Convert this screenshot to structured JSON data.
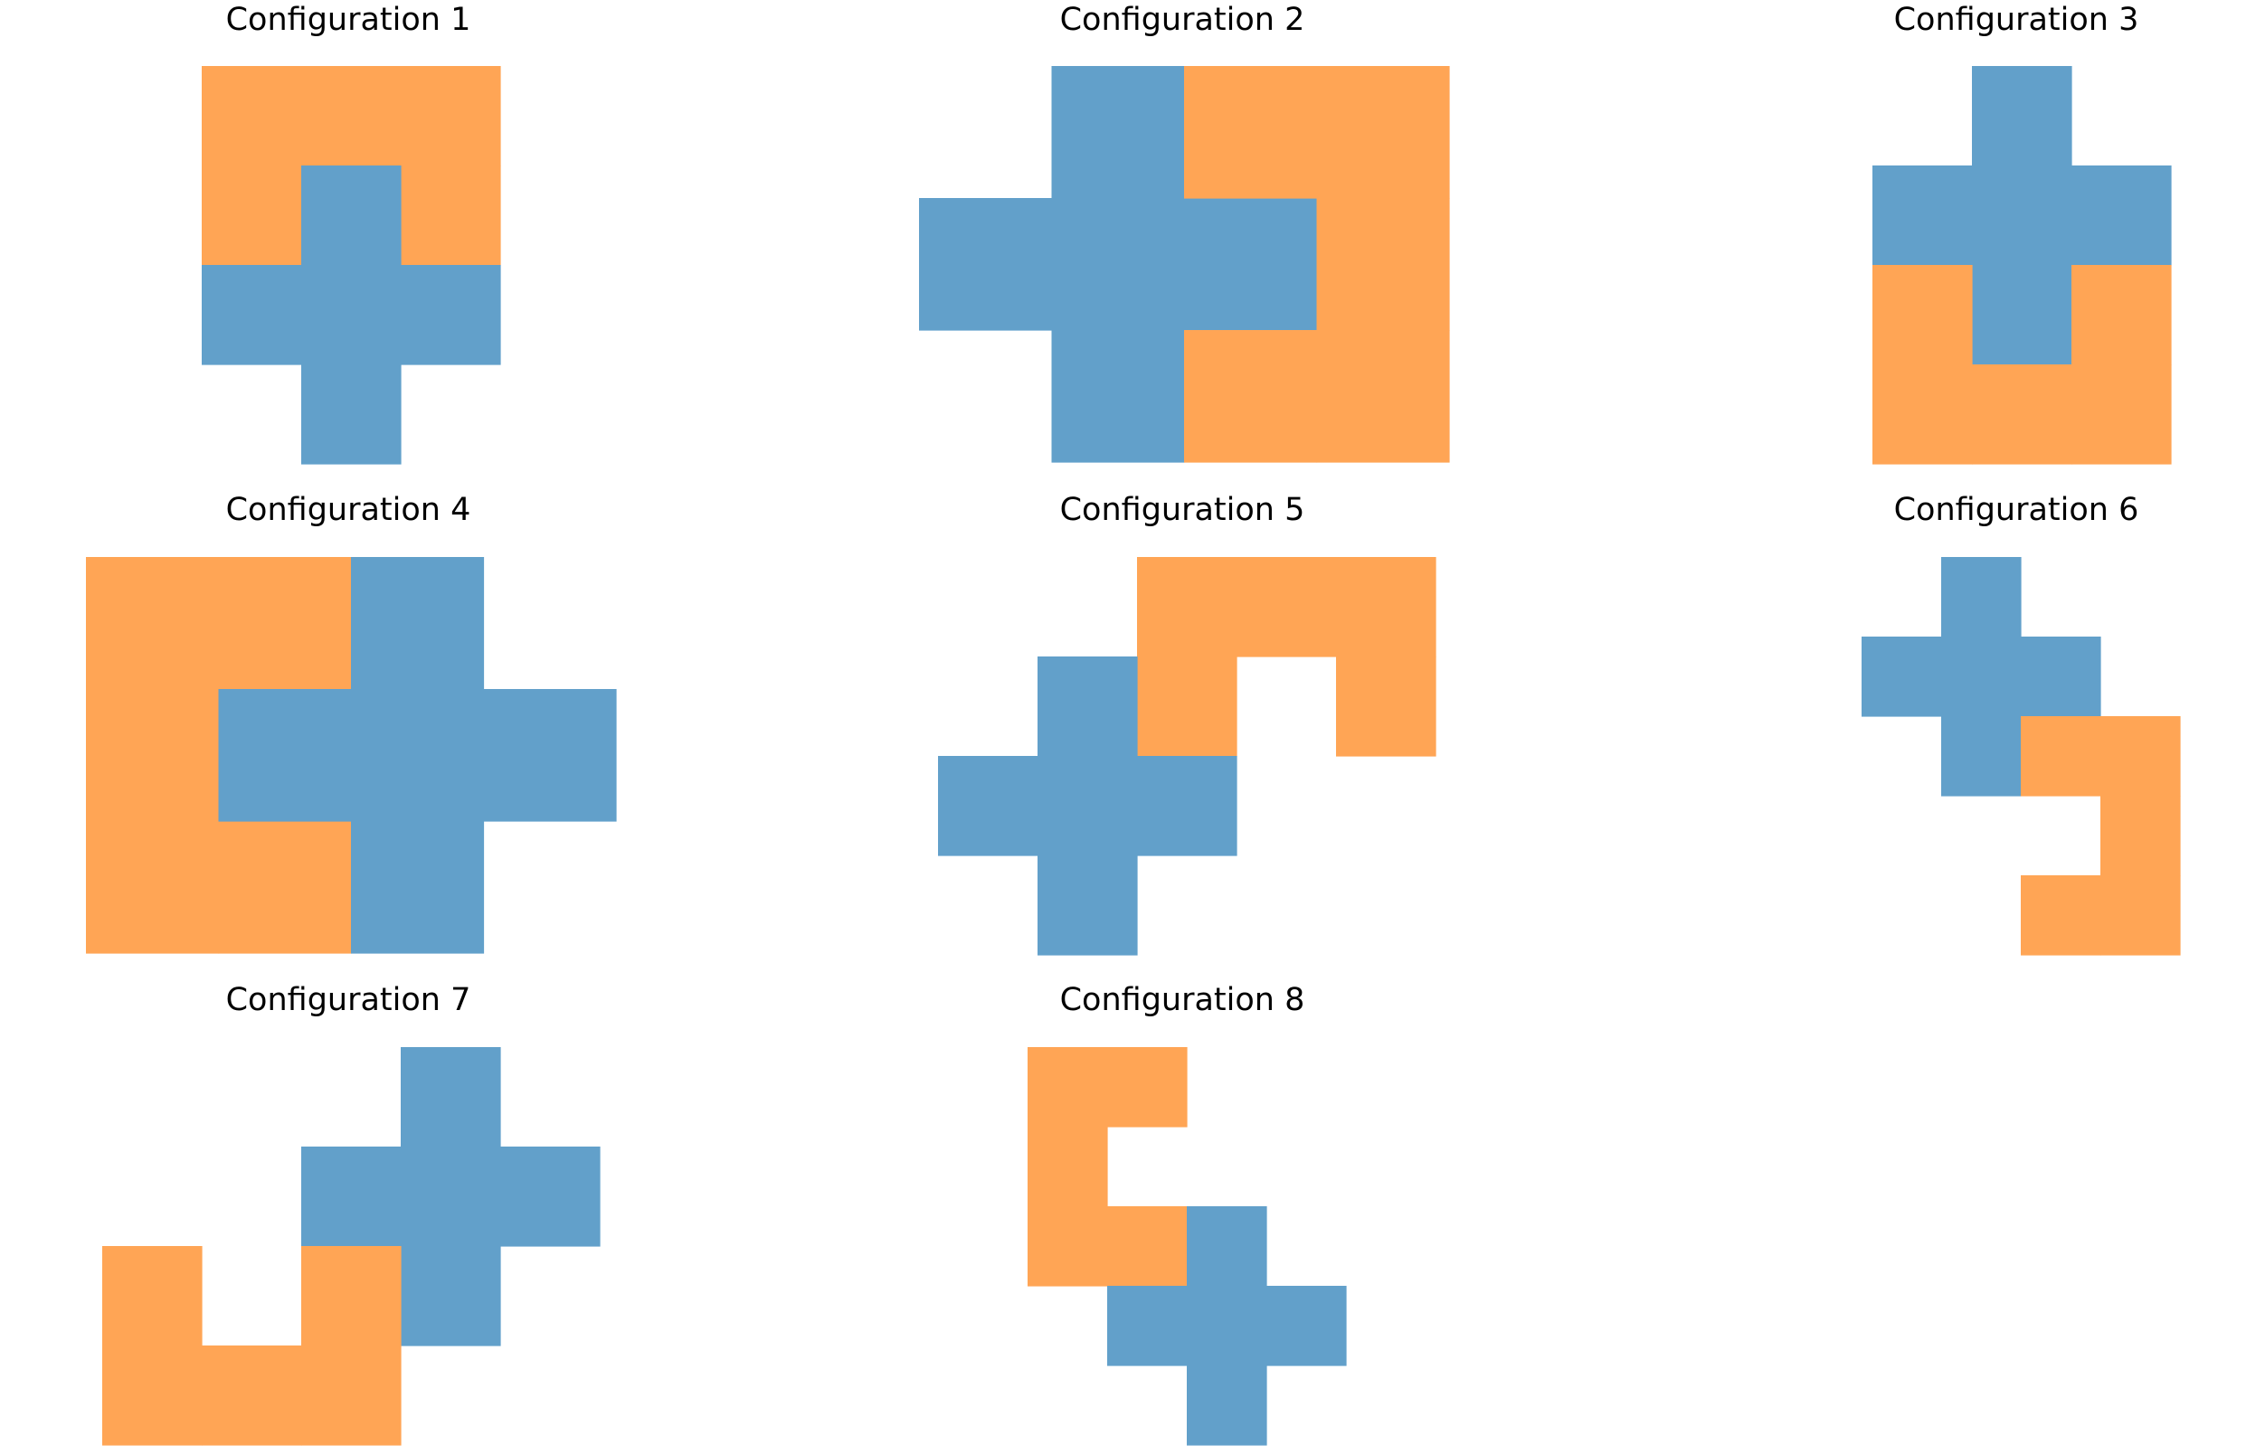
{
  "colors": {
    "cross": "#62a0ca",
    "ushape": "#ffa555",
    "background": "#ffffff"
  },
  "configurations": [
    {
      "title": "Configuration 1",
      "shapes": [
        {
          "shape": "u-shape",
          "color": "ushape",
          "cells": [
            [
              0,
              0
            ],
            [
              1,
              0
            ],
            [
              2,
              0
            ],
            [
              0,
              1
            ],
            [
              2,
              1
            ]
          ]
        },
        {
          "shape": "plus",
          "color": "cross",
          "cells": [
            [
              1,
              1
            ],
            [
              0,
              2
            ],
            [
              1,
              2
            ],
            [
              2,
              2
            ],
            [
              1,
              3
            ]
          ]
        }
      ]
    },
    {
      "title": "Configuration 2",
      "shapes": [
        {
          "shape": "plus",
          "color": "cross",
          "cells": [
            [
              1,
              0
            ],
            [
              0,
              1
            ],
            [
              1,
              1
            ],
            [
              2,
              1
            ],
            [
              1,
              2
            ]
          ]
        },
        {
          "shape": "u-shape",
          "color": "ushape",
          "cells": [
            [
              2,
              0
            ],
            [
              3,
              0
            ],
            [
              3,
              1
            ],
            [
              2,
              2
            ],
            [
              3,
              2
            ]
          ]
        }
      ]
    },
    {
      "title": "Configuration 3",
      "shapes": [
        {
          "shape": "plus",
          "color": "cross",
          "cells": [
            [
              1,
              0
            ],
            [
              0,
              1
            ],
            [
              1,
              1
            ],
            [
              2,
              1
            ],
            [
              1,
              2
            ]
          ]
        },
        {
          "shape": "u-shape",
          "color": "ushape",
          "cells": [
            [
              0,
              2
            ],
            [
              2,
              2
            ],
            [
              0,
              3
            ],
            [
              1,
              3
            ],
            [
              2,
              3
            ]
          ]
        }
      ]
    },
    {
      "title": "Configuration 4",
      "shapes": [
        {
          "shape": "u-shape",
          "color": "ushape",
          "cells": [
            [
              0,
              0
            ],
            [
              1,
              0
            ],
            [
              0,
              1
            ],
            [
              0,
              2
            ],
            [
              1,
              2
            ]
          ]
        },
        {
          "shape": "plus",
          "color": "cross",
          "cells": [
            [
              2,
              0
            ],
            [
              1,
              1
            ],
            [
              2,
              1
            ],
            [
              3,
              1
            ],
            [
              2,
              2
            ]
          ]
        }
      ]
    },
    {
      "title": "Configuration 5",
      "shapes": [
        {
          "shape": "u-shape",
          "color": "ushape",
          "cells": [
            [
              2,
              0
            ],
            [
              3,
              0
            ],
            [
              4,
              0
            ],
            [
              2,
              1
            ],
            [
              4,
              1
            ]
          ]
        },
        {
          "shape": "plus",
          "color": "cross",
          "cells": [
            [
              1,
              1
            ],
            [
              0,
              2
            ],
            [
              1,
              2
            ],
            [
              2,
              2
            ],
            [
              1,
              3
            ]
          ]
        }
      ]
    },
    {
      "title": "Configuration 6",
      "shapes": [
        {
          "shape": "plus",
          "color": "cross",
          "cells": [
            [
              1,
              0
            ],
            [
              0,
              1
            ],
            [
              1,
              1
            ],
            [
              2,
              1
            ],
            [
              1,
              2
            ]
          ]
        },
        {
          "shape": "u-shape",
          "color": "ushape",
          "cells": [
            [
              2,
              2
            ],
            [
              3,
              2
            ],
            [
              3,
              3
            ],
            [
              2,
              4
            ],
            [
              3,
              4
            ]
          ]
        }
      ]
    },
    {
      "title": "Configuration 7",
      "shapes": [
        {
          "shape": "plus",
          "color": "cross",
          "cells": [
            [
              3,
              0
            ],
            [
              2,
              1
            ],
            [
              3,
              1
            ],
            [
              4,
              1
            ],
            [
              3,
              2
            ]
          ]
        },
        {
          "shape": "u-shape",
          "color": "ushape",
          "cells": [
            [
              0,
              2
            ],
            [
              2,
              2
            ],
            [
              0,
              3
            ],
            [
              1,
              3
            ],
            [
              2,
              3
            ]
          ]
        }
      ]
    },
    {
      "title": "Configuration 8",
      "shapes": [
        {
          "shape": "u-shape",
          "color": "ushape",
          "cells": [
            [
              0,
              0
            ],
            [
              1,
              0
            ],
            [
              0,
              1
            ],
            [
              0,
              2
            ],
            [
              1,
              2
            ]
          ]
        },
        {
          "shape": "plus",
          "color": "cross",
          "cells": [
            [
              2,
              2
            ],
            [
              1,
              3
            ],
            [
              2,
              3
            ],
            [
              3,
              3
            ],
            [
              2,
              4
            ]
          ]
        }
      ]
    }
  ]
}
